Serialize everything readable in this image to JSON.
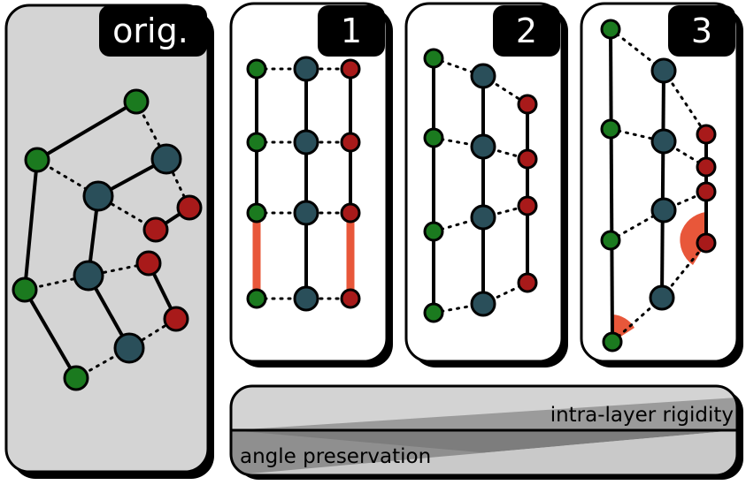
{
  "panels": {
    "original": {
      "label": "orig."
    },
    "step1": {
      "label": "1"
    },
    "step2": {
      "label": "2"
    },
    "step3": {
      "label": "3"
    }
  },
  "bar": {
    "top_label": "intra-layer rigidity",
    "bottom_label": "angle preservation"
  },
  "colors": {
    "green": "#1b7a1f",
    "teal": "#2a4f5a",
    "red": "#a81a1a",
    "highlight": "#e8573a",
    "panel_gray": "#d4d4d4"
  }
}
